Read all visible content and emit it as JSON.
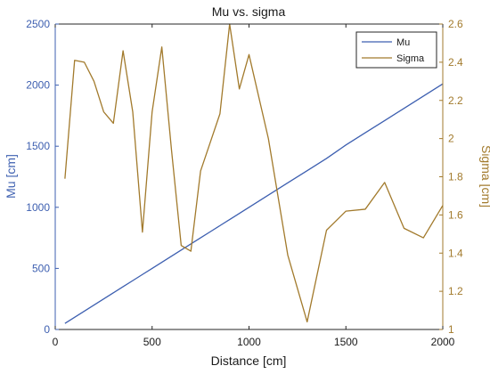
{
  "chart_data": {
    "type": "line",
    "title": "Mu vs. sigma",
    "xlabel": "Distance [cm]",
    "ylabel_left": "Mu [cm]",
    "ylabel_right": "Sigma [cm]",
    "xlim": [
      0,
      2000
    ],
    "ylim_left": [
      0,
      2500
    ],
    "ylim_right": [
      1,
      2.6
    ],
    "x_ticks": [
      0,
      500,
      1000,
      1500,
      2000
    ],
    "y_left_ticks": [
      0,
      500,
      1000,
      1500,
      2000,
      2500
    ],
    "y_right_ticks": [
      1,
      1.2,
      1.4,
      1.6,
      1.8,
      2,
      2.2,
      2.4,
      2.6
    ],
    "grid": false,
    "legend_position": "top-right",
    "series": [
      {
        "name": "Mu",
        "axis": "left",
        "color": "#3d5fb0",
        "x": [
          50,
          100,
          150,
          200,
          250,
          300,
          350,
          400,
          450,
          500,
          550,
          600,
          650,
          700,
          750,
          800,
          850,
          900,
          950,
          1000,
          1050,
          1100,
          1150,
          1200,
          1300,
          1400,
          1500,
          1600,
          1700,
          1800,
          1900,
          2000
        ],
        "y": [
          50,
          100,
          150,
          200,
          250,
          300,
          350,
          400,
          450,
          500,
          550,
          600,
          650,
          700,
          750,
          800,
          850,
          900,
          950,
          1000,
          1050,
          1100,
          1150,
          1200,
          1300,
          1400,
          1510,
          1610,
          1710,
          1810,
          1910,
          2010
        ]
      },
      {
        "name": "Sigma",
        "axis": "right",
        "color": "#a27a2c",
        "x": [
          50,
          100,
          150,
          200,
          250,
          300,
          350,
          400,
          450,
          500,
          550,
          600,
          650,
          700,
          750,
          800,
          850,
          900,
          950,
          1000,
          1100,
          1200,
          1300,
          1400,
          1500,
          1600,
          1700,
          1800,
          1900,
          2000
        ],
        "y": [
          1.79,
          2.41,
          2.4,
          2.3,
          2.14,
          2.08,
          2.46,
          2.14,
          1.51,
          2.14,
          2.48,
          1.94,
          1.44,
          1.41,
          1.83,
          1.98,
          2.13,
          2.6,
          2.26,
          2.44,
          2.0,
          1.39,
          1.04,
          1.52,
          1.62,
          1.63,
          1.77,
          1.53,
          1.48,
          1.65
        ]
      }
    ]
  }
}
